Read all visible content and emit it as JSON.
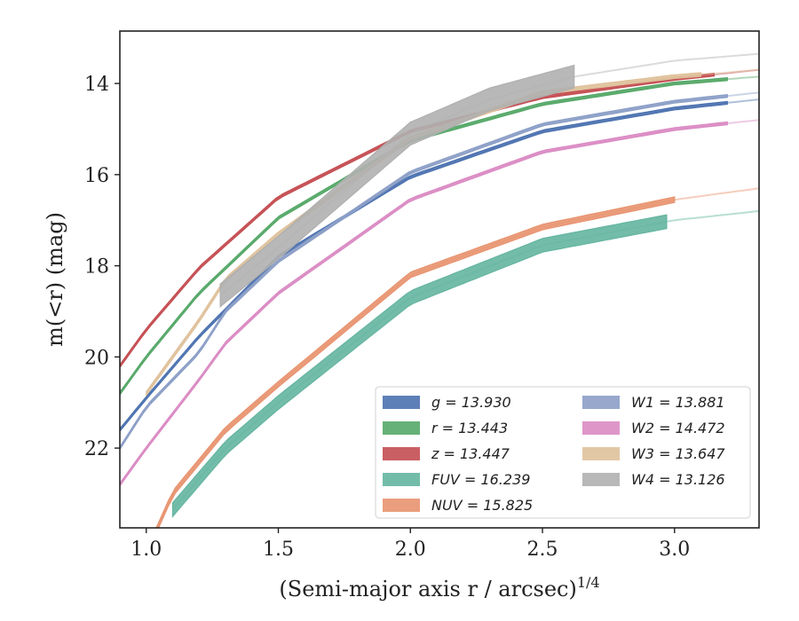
{
  "chart_data": {
    "type": "line",
    "xlabel": "(Semi-major axis r / arcsec)",
    "xlabel_power": "1/4",
    "ylabel": "m(<r) (mag)",
    "xlim": [
      0.9,
      3.32
    ],
    "ylim": [
      23.75,
      12.85
    ],
    "y_inverted": true,
    "grid": false,
    "legend_position": "lower-right",
    "x_ticks": [
      1.0,
      1.5,
      2.0,
      2.5,
      3.0
    ],
    "x_tick_labels": [
      "1.0",
      "1.5",
      "2.0",
      "2.5",
      "3.0"
    ],
    "y_ticks": [
      14,
      16,
      18,
      20,
      22
    ],
    "y_tick_labels": [
      "14",
      "16",
      "18",
      "20",
      "22"
    ],
    "series": [
      {
        "name": "g = 13.930",
        "color": "#4c72b0",
        "band": 0.06,
        "x_start": 0.9,
        "x_solid_end": 3.2,
        "x_end": 3.32,
        "x": [
          0.9,
          1.0,
          1.2,
          1.5,
          2.0,
          2.5,
          3.0,
          3.32
        ],
        "y": [
          21.6,
          20.9,
          19.55,
          17.8,
          16.05,
          15.05,
          14.55,
          14.35
        ]
      },
      {
        "name": "r = 13.443",
        "color": "#55a868",
        "band": 0.06,
        "x_start": 0.9,
        "x_solid_end": 3.2,
        "x_end": 3.32,
        "x": [
          0.9,
          1.0,
          1.2,
          1.5,
          2.0,
          2.5,
          3.0,
          3.32
        ],
        "y": [
          20.8,
          20.0,
          18.6,
          16.95,
          15.25,
          14.45,
          14.0,
          13.85
        ]
      },
      {
        "name": "z = 13.447",
        "color": "#c44e52",
        "band": 0.06,
        "x_start": 0.9,
        "x_solid_end": 3.15,
        "x_end": 3.32,
        "x": [
          0.9,
          1.0,
          1.2,
          1.5,
          2.0,
          2.5,
          3.0,
          3.32
        ],
        "y": [
          20.2,
          19.4,
          18.05,
          16.5,
          15.05,
          14.3,
          13.9,
          13.7
        ]
      },
      {
        "name": "FUV = 16.239",
        "color": "#64b5a0",
        "band": 0.3,
        "x_start": 1.1,
        "x_solid_end": 2.97,
        "x_end": 3.32,
        "x": [
          1.1,
          1.3,
          1.5,
          2.0,
          2.5,
          3.0,
          3.32
        ],
        "y": [
          23.35,
          22.0,
          21.0,
          18.7,
          17.55,
          17.0,
          16.8
        ]
      },
      {
        "name": "NUV = 15.825",
        "color": "#e8936f",
        "band": 0.12,
        "x_start": 0.9,
        "x_solid_end": 3.0,
        "x_end": 3.32,
        "x": [
          0.9,
          1.0,
          1.1,
          1.3,
          1.5,
          2.0,
          2.5,
          3.0,
          3.32
        ],
        "y": [
          25.2,
          24.3,
          23.0,
          21.6,
          20.6,
          18.2,
          17.15,
          16.55,
          16.3
        ]
      },
      {
        "name": "W1 = 13.881",
        "color": "#8c9fc7",
        "band": 0.06,
        "x_start": 0.9,
        "x_solid_end": 3.2,
        "x_end": 3.32,
        "x": [
          0.9,
          1.0,
          1.2,
          1.3,
          1.5,
          2.0,
          2.5,
          3.0,
          3.32
        ],
        "y": [
          22.0,
          21.1,
          19.9,
          19.0,
          17.9,
          15.95,
          14.9,
          14.4,
          14.2
        ]
      },
      {
        "name": "W2 = 14.472",
        "color": "#da8bc3",
        "band": 0.06,
        "x_start": 0.9,
        "x_solid_end": 3.2,
        "x_end": 3.32,
        "x": [
          0.9,
          1.0,
          1.2,
          1.3,
          1.5,
          2.0,
          2.5,
          3.0,
          3.32
        ],
        "y": [
          22.8,
          22.0,
          20.5,
          19.7,
          18.6,
          16.55,
          15.5,
          15.0,
          14.8
        ]
      },
      {
        "name": "W3 = 13.647",
        "color": "#dfc19b",
        "band": 0.08,
        "x_start": 1.0,
        "x_solid_end": 3.1,
        "x_end": 3.32,
        "x": [
          1.0,
          1.2,
          1.3,
          1.5,
          2.0,
          2.5,
          3.0,
          3.32
        ],
        "y": [
          20.8,
          19.2,
          18.3,
          17.3,
          15.2,
          14.2,
          13.85,
          13.7
        ]
      },
      {
        "name": "W4 = 13.126",
        "color": "#b0b0b0",
        "band": 0.5,
        "x_start": 1.28,
        "x_solid_end": 2.62,
        "x_end": 3.32,
        "x": [
          1.28,
          1.5,
          1.7,
          2.0,
          2.3,
          2.62,
          3.0,
          3.32
        ],
        "y": [
          18.65,
          17.6,
          16.6,
          15.1,
          14.35,
          13.85,
          13.5,
          13.35
        ]
      }
    ]
  }
}
